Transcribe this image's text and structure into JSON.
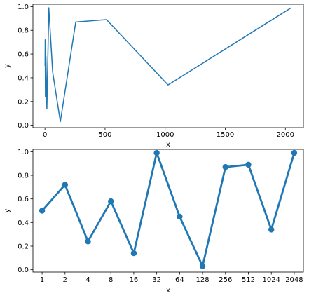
{
  "chart_data": [
    {
      "type": "line",
      "xlabel": "x",
      "ylabel": "y",
      "xlim": [
        -100,
        2150
      ],
      "ylim": [
        -0.02,
        1.02
      ],
      "xticks": [
        0,
        500,
        1000,
        1500,
        2000
      ],
      "yticks": [
        0.0,
        0.2,
        0.4,
        0.6,
        0.8,
        1.0
      ],
      "xtick_labels": [
        "0",
        "500",
        "1000",
        "1500",
        "2000"
      ],
      "ytick_labels": [
        "0.0",
        "0.2",
        "0.4",
        "0.6",
        "0.8",
        "1.0"
      ],
      "grid": false,
      "color": "#1f77b4",
      "series": [
        {
          "x": [
            1,
            2,
            4,
            8,
            16,
            32,
            64,
            128,
            256,
            512,
            1024,
            2048
          ],
          "y": [
            0.5,
            0.72,
            0.24,
            0.58,
            0.14,
            0.99,
            0.45,
            0.03,
            0.87,
            0.89,
            0.34,
            0.99
          ]
        }
      ]
    },
    {
      "type": "line",
      "markers": true,
      "xlabel": "x",
      "ylabel": "y",
      "ylim": [
        -0.02,
        1.02
      ],
      "categories": [
        "1",
        "2",
        "4",
        "8",
        "16",
        "32",
        "64",
        "128",
        "256",
        "512",
        "1024",
        "2048"
      ],
      "yticks": [
        0.0,
        0.2,
        0.4,
        0.6,
        0.8,
        1.0
      ],
      "ytick_labels": [
        "0.0",
        "0.2",
        "0.4",
        "0.6",
        "0.8",
        "1.0"
      ],
      "grid": false,
      "color": "#1f77b4",
      "series": [
        {
          "values": [
            0.5,
            0.72,
            0.24,
            0.58,
            0.14,
            0.99,
            0.45,
            0.03,
            0.87,
            0.89,
            0.34,
            0.99
          ]
        }
      ]
    }
  ]
}
